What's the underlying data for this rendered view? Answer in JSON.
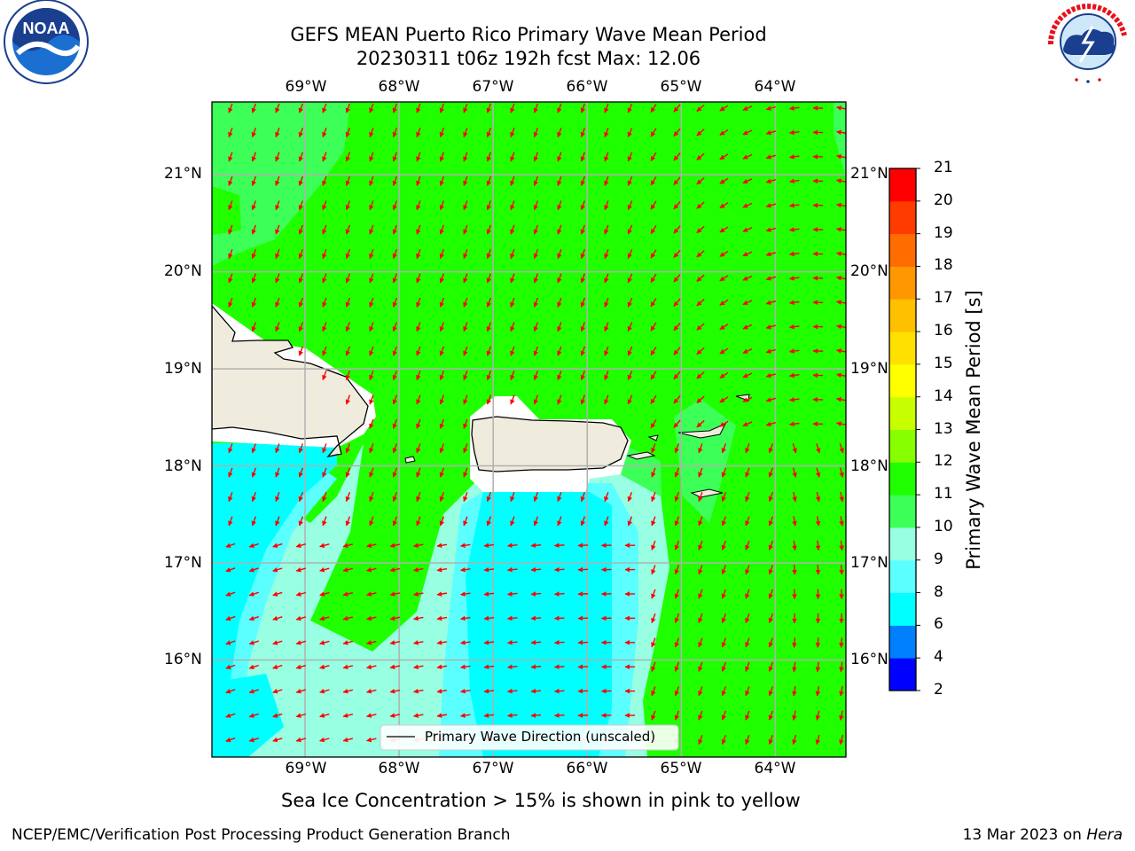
{
  "title": {
    "line1": "GEFS MEAN Puerto Rico Primary Wave Mean Period",
    "line2": "20230311 t06z 192h fcst   Max: 12.06"
  },
  "logos": {
    "left": "NOAA",
    "left_ring": "NATIONAL OCEANIC AND ATMOSPHERIC ADMINISTRATION · U.S. DEPARTMENT OF COMMERCE",
    "right_ring": "NATIONAL WEATHER SERVICE"
  },
  "axes": {
    "lon_labels": [
      "69°W",
      "68°W",
      "67°W",
      "66°W",
      "65°W",
      "64°W"
    ],
    "lat_labels": [
      "21°N",
      "20°N",
      "19°N",
      "18°N",
      "17°N",
      "16°N"
    ],
    "lon_values": [
      -69,
      -68,
      -67,
      -66,
      -65,
      -64
    ],
    "lat_values": [
      21,
      20,
      19,
      18,
      17,
      16
    ],
    "extent": {
      "lon_min": -69.99,
      "lon_max": -63.25,
      "lat_min": 15.0,
      "lat_max": 21.75
    }
  },
  "legend": {
    "label": "Primary Wave Direction (unscaled)",
    "position": "bottom-center"
  },
  "colorbar": {
    "label": "Primary Wave Mean Period [s]",
    "ticks": [
      "2",
      "4",
      "6",
      "8",
      "9",
      "10",
      "11",
      "12",
      "13",
      "14",
      "15",
      "16",
      "17",
      "18",
      "19",
      "20",
      "21"
    ],
    "colors": [
      "#0000ff",
      "#0080ff",
      "#00ffff",
      "#5cffff",
      "#98ffe2",
      "#3cff58",
      "#20ff00",
      "#87ff00",
      "#c7ff00",
      "#ffff00",
      "#ffe000",
      "#ffc000",
      "#ff9800",
      "#ff6c00",
      "#ff3c00",
      "#ff0000"
    ]
  },
  "map_colors": {
    "land": "#efecdd",
    "green": "#20ff00",
    "light_green": "#3cff58",
    "aqua": "#98ffe2",
    "light_cyan": "#5cffff",
    "cyan": "#00ffff",
    "arrow": "#ff0000",
    "grid": "#b0b0b0"
  },
  "caption": "Sea Ice Concentration > 15% is shown in pink to yellow",
  "footer": {
    "left": "NCEP/EMC/Verification Post Processing Product Generation Branch",
    "right_date": "13 Mar 2023 on",
    "right_host": "Hera"
  }
}
